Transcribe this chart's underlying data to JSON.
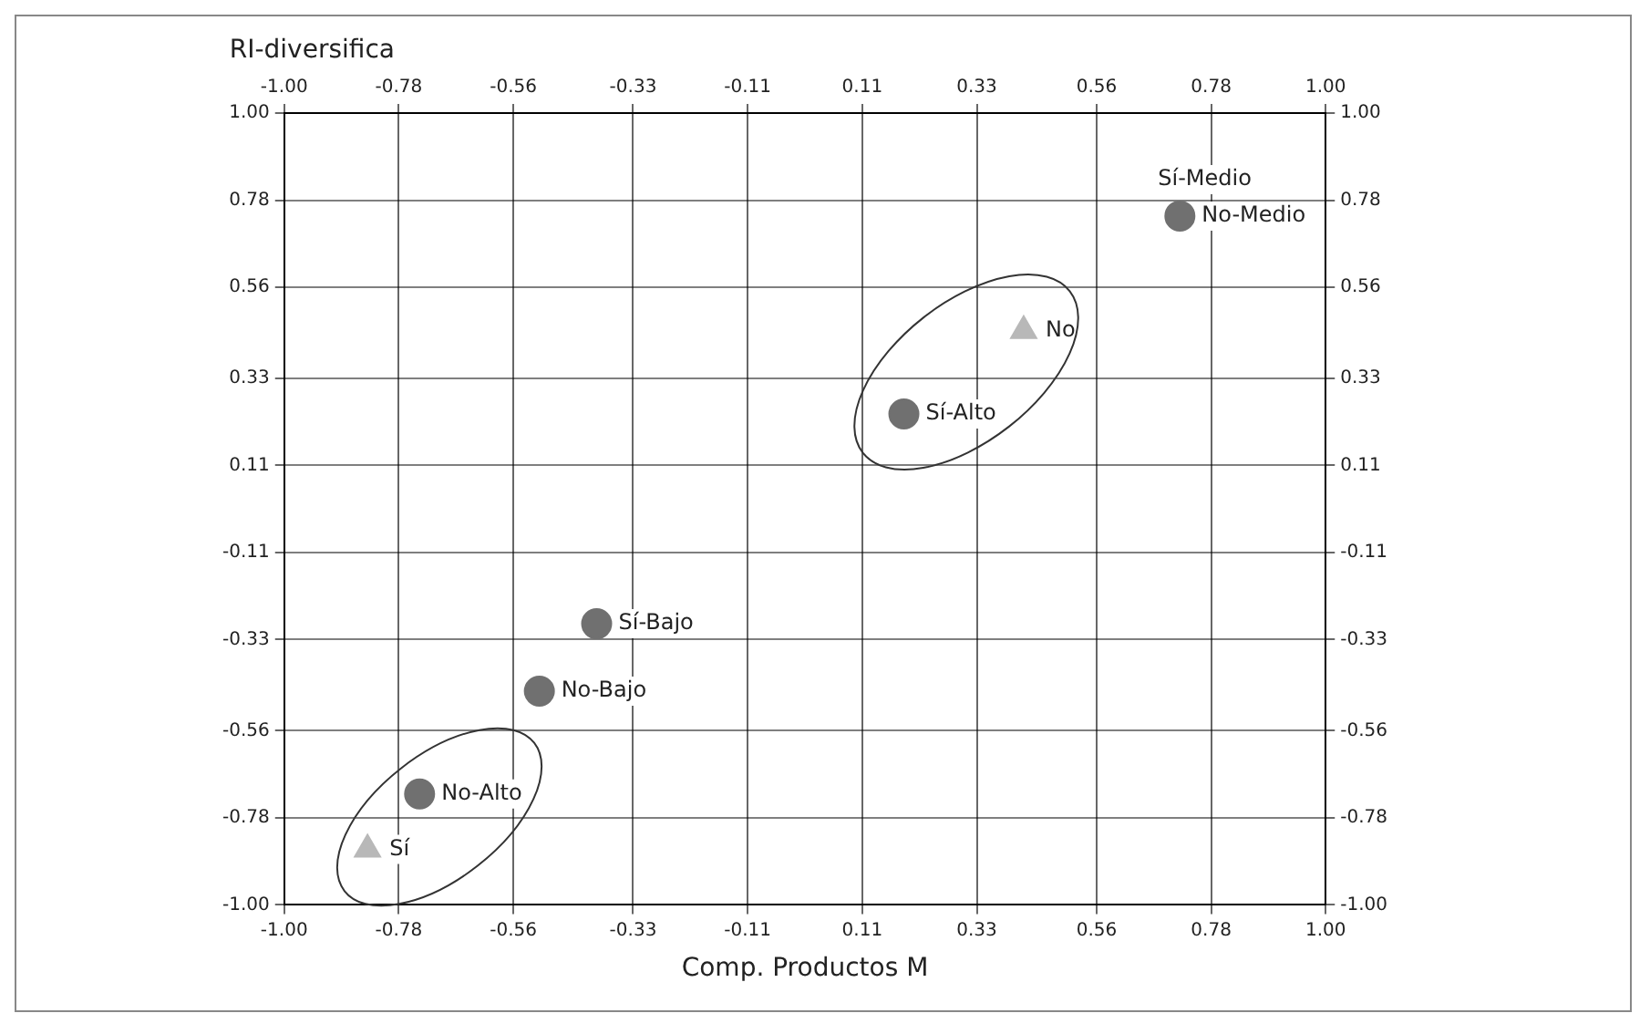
{
  "chart_data": {
    "type": "scatter",
    "xlabel": "Comp. Productos M",
    "ylabel": "RI-diversifica",
    "xlim": [
      -1,
      1
    ],
    "xticks": [
      {
        "value": -1,
        "label": "-1.00"
      },
      -0.78,
      -0.56,
      -0.33,
      -0.11,
      0.11,
      0.33,
      0.56,
      0.78,
      {
        "value": 1,
        "label": "1.00"
      }
    ],
    "x2lim": [
      -1,
      1
    ],
    "x2ticks": [
      {
        "value": -1,
        "label": "-1.00"
      },
      -0.78,
      -0.56,
      -0.33,
      -0.11,
      0.11,
      0.33,
      0.56,
      0.78,
      {
        "value": 1,
        "label": "1.00"
      }
    ],
    "ylim": [
      -1,
      1
    ],
    "yticks": [
      {
        "value": -1,
        "label": "-1.00"
      },
      -0.78,
      -0.56,
      -0.33,
      -0.11,
      0.11,
      0.33,
      0.56,
      0.78,
      {
        "value": 1,
        "label": "1.00"
      }
    ],
    "y2lim": [
      -1,
      1
    ],
    "y2ticks": [
      {
        "value": -1,
        "label": "-1.00"
      },
      -0.78,
      -0.56,
      -0.33,
      -0.11,
      0.11,
      0.33,
      0.56,
      0.78,
      {
        "value": 1,
        "label": "1.00"
      }
    ],
    "grid": true,
    "legend": false,
    "series": [
      {
        "color": "#707070",
        "marker": "circle",
        "x": [
          0.72,
          0.19,
          -0.4,
          -0.51,
          -0.74
        ],
        "values": [
          0.74,
          0.24,
          -0.29,
          -0.46,
          -0.72
        ]
      },
      {
        "color": "#b8b8b8",
        "marker": "triangle",
        "x": [
          0.42,
          -0.84
        ],
        "values": [
          0.45,
          -0.86
        ]
      }
    ],
    "annotations": [
      {
        "text": "No-Medio",
        "x": 0.72,
        "y": 0.74
      },
      {
        "text": "Sí-Medio",
        "x": 0.72,
        "y": 0.74
      },
      {
        "text": "Sí-Alto",
        "x": 0.19,
        "y": 0.24
      },
      {
        "text": "Sí-Bajo",
        "x": -0.4,
        "y": -0.29
      },
      {
        "text": "No-Bajo",
        "x": -0.51,
        "y": -0.46
      },
      {
        "text": "No-Alto",
        "x": -0.74,
        "y": -0.72
      },
      {
        "text": "No",
        "x": 0.42,
        "y": 0.45
      },
      {
        "text": "Sí",
        "x": -0.84,
        "y": -0.86
      }
    ]
  }
}
